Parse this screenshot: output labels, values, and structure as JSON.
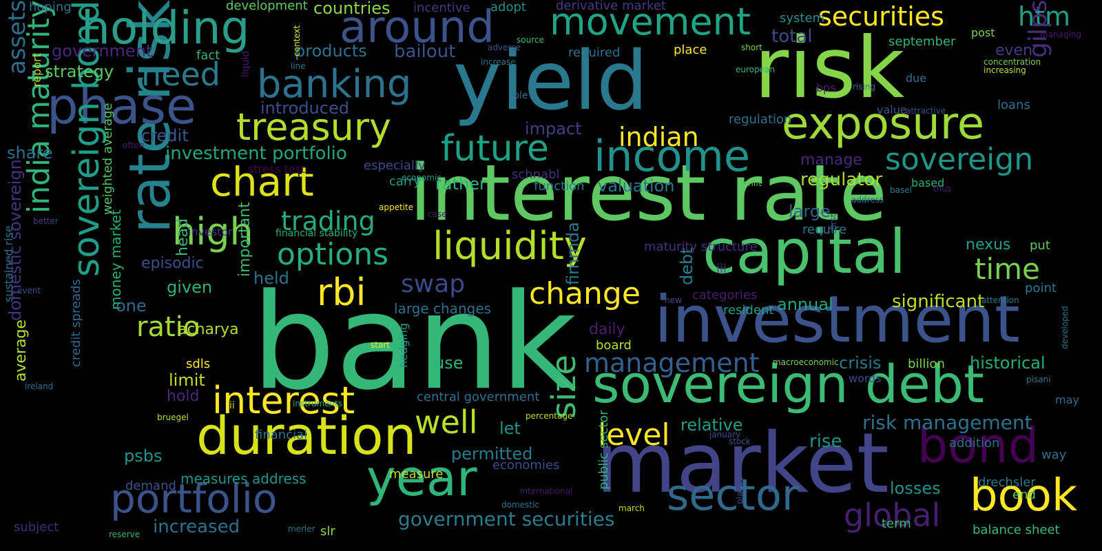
{
  "words": [
    {
      "text": "bank",
      "color": "#35b779"
    },
    {
      "text": "interest rate",
      "color": "#5ec962"
    },
    {
      "text": "risk",
      "color": "#86d549"
    },
    {
      "text": "yield",
      "color": "#2a788e"
    },
    {
      "text": "market",
      "color": "#414487"
    },
    {
      "text": "investment",
      "color": "#3b528b"
    },
    {
      "text": "rate risk",
      "color": "#25838e"
    },
    {
      "text": "capital",
      "color": "#4ac16d"
    },
    {
      "text": "sovereign debt",
      "color": "#3bbb75"
    },
    {
      "text": "duration",
      "color": "#d8e219"
    },
    {
      "text": "holding",
      "color": "#2a9d8b"
    },
    {
      "text": "around",
      "color": "#3b528b"
    },
    {
      "text": "phase",
      "color": "#3b528b"
    },
    {
      "text": "exposure",
      "color": "#a0da39"
    },
    {
      "text": "income",
      "color": "#21918c"
    },
    {
      "text": "year",
      "color": "#2fb47c"
    },
    {
      "text": "portfolio",
      "color": "#3b528b"
    },
    {
      "text": "book",
      "color": "#fde725"
    },
    {
      "text": "bond",
      "color": "#440154"
    },
    {
      "text": "sector",
      "color": "#31688e"
    },
    {
      "text": "chart",
      "color": "#dde318"
    },
    {
      "text": "liquidity",
      "color": "#b5de2b"
    },
    {
      "text": "banking",
      "color": "#2c728e"
    },
    {
      "text": "treasury",
      "color": "#b5de2b"
    },
    {
      "text": "sovereign bond",
      "color": "#1f9e89"
    },
    {
      "text": "movement",
      "color": "#20a486"
    },
    {
      "text": "securities",
      "color": "#fde725"
    },
    {
      "text": "htm",
      "color": "#1fa187"
    },
    {
      "text": "future",
      "color": "#1fa187"
    },
    {
      "text": "interest",
      "color": "#fde725"
    },
    {
      "text": "rbi",
      "color": "#fde725"
    },
    {
      "text": "sovereign",
      "color": "#1f968b"
    },
    {
      "text": "high",
      "color": "#7ad151"
    },
    {
      "text": "india maturity",
      "color": "#31b57b"
    },
    {
      "text": "time",
      "color": "#7ad151"
    },
    {
      "text": "size",
      "color": "#3fbc73"
    },
    {
      "text": "global",
      "color": "#481f70"
    },
    {
      "text": "change",
      "color": "#fde725"
    },
    {
      "text": "need",
      "color": "#287c8e"
    },
    {
      "text": "ratio",
      "color": "#a5db36"
    },
    {
      "text": "options",
      "color": "#26ad81"
    },
    {
      "text": "management",
      "color": "#355f8d"
    },
    {
      "text": "well",
      "color": "#bddf26"
    },
    {
      "text": "level",
      "color": "#fde725"
    },
    {
      "text": "gilps",
      "color": "#472d7b"
    },
    {
      "text": "assets",
      "color": "#2e6e8e"
    },
    {
      "text": "swap",
      "color": "#3e4989"
    },
    {
      "text": "indian",
      "color": "#fde725"
    },
    {
      "text": "trading",
      "color": "#25ab82"
    },
    {
      "text": "significant",
      "color": "#bddf26"
    },
    {
      "text": "government securities",
      "color": "#287d8e"
    },
    {
      "text": "investment portfolio",
      "color": "#21a685"
    },
    {
      "text": "risk management",
      "color": "#2c728e"
    },
    {
      "text": "regulator",
      "color": "#addc30"
    },
    {
      "text": "total",
      "color": "#3e4c8a"
    },
    {
      "text": "nexus",
      "color": "#1fa187"
    },
    {
      "text": "bailout",
      "color": "#3b528b"
    },
    {
      "text": "increased",
      "color": "#2d708e"
    },
    {
      "text": "crisis",
      "color": "#2a788e"
    },
    {
      "text": "historical",
      "color": "#26ad81"
    },
    {
      "text": "government",
      "color": "#482878"
    },
    {
      "text": "products",
      "color": "#2c728e"
    },
    {
      "text": "strategy",
      "color": "#5ec962"
    },
    {
      "text": "countries",
      "color": "#8fd744"
    },
    {
      "text": "credit",
      "color": "#38588c"
    },
    {
      "text": "share",
      "color": "#2d708e"
    },
    {
      "text": "introduced",
      "color": "#3e4c8a"
    },
    {
      "text": "impact",
      "color": "#433e85"
    },
    {
      "text": "valuation",
      "color": "#2a788e"
    },
    {
      "text": "rather",
      "color": "#2fb47c"
    },
    {
      "text": "manage",
      "color": "#482878"
    },
    {
      "text": "large",
      "color": "#355f8d"
    },
    {
      "text": "require",
      "color": "#2a788e"
    },
    {
      "text": "episodic",
      "color": "#3e4c8a"
    },
    {
      "text": "given",
      "color": "#2fb47c"
    },
    {
      "text": "held",
      "color": "#2c728e"
    },
    {
      "text": "one",
      "color": "#31688e"
    },
    {
      "text": "daily",
      "color": "#481f70"
    },
    {
      "text": "large changes",
      "color": "#2d708e"
    },
    {
      "text": "relative",
      "color": "#1f9e89"
    },
    {
      "text": "annual",
      "color": "#20a486"
    },
    {
      "text": "debt",
      "color": "#287d8e"
    },
    {
      "text": "fimmda",
      "color": "#2a788e"
    },
    {
      "text": "limit",
      "color": "#c2df23"
    },
    {
      "text": "hold",
      "color": "#482878"
    },
    {
      "text": "use",
      "color": "#2fb47c"
    },
    {
      "text": "let",
      "color": "#21918c"
    },
    {
      "text": "permitted",
      "color": "#287c8e"
    },
    {
      "text": "board",
      "color": "#bddf26"
    },
    {
      "text": "rise",
      "color": "#1f968b"
    },
    {
      "text": "even",
      "color": "#443a83"
    },
    {
      "text": "loans",
      "color": "#2c728e"
    },
    {
      "text": "acharya",
      "color": "#b5de2b"
    },
    {
      "text": "psbs",
      "color": "#1f968b"
    },
    {
      "text": "measures address",
      "color": "#1f968b"
    },
    {
      "text": "central government",
      "color": "#2c728e"
    },
    {
      "text": "money market",
      "color": "#26ad81"
    },
    {
      "text": "important",
      "color": "#3bbb75"
    },
    {
      "text": "head",
      "color": "#35b779"
    },
    {
      "text": "investor",
      "color": "#46327e"
    },
    {
      "text": "sdls",
      "color": "#fde725"
    },
    {
      "text": "average",
      "color": "#b5de2b"
    },
    {
      "text": "domestic sovereign",
      "color": "#46327e"
    },
    {
      "text": "weighted average",
      "color": "#52c569"
    },
    {
      "text": "economies",
      "color": "#3e4c8a"
    },
    {
      "text": "demand",
      "color": "#3b528b"
    },
    {
      "text": "drechsler",
      "color": "#2a788e"
    },
    {
      "text": "losses",
      "color": "#21918c"
    },
    {
      "text": "addition",
      "color": "#2d708e"
    },
    {
      "text": "way",
      "color": "#2c728e"
    },
    {
      "text": "may",
      "color": "#31688e"
    },
    {
      "text": "point",
      "color": "#2a788e"
    },
    {
      "text": "put",
      "color": "#5ec962"
    },
    {
      "text": "end",
      "color": "#5ec962"
    },
    {
      "text": "balance sheet",
      "color": "#38b977"
    },
    {
      "text": "term",
      "color": "#38b977"
    },
    {
      "text": "billion",
      "color": "#7ad151"
    },
    {
      "text": "words",
      "color": "#3e4989"
    },
    {
      "text": "categories",
      "color": "#481f70"
    },
    {
      "text": "resident",
      "color": "#1f9e89"
    },
    {
      "text": "iii",
      "color": "#3e4c8a"
    },
    {
      "text": "function",
      "color": "#2a788e"
    },
    {
      "text": "carry",
      "color": "#1f9e89"
    },
    {
      "text": "especially",
      "color": "#3e4989"
    },
    {
      "text": "schnabl",
      "color": "#472d7b"
    },
    {
      "text": "hedging",
      "color": "#1f9e89"
    },
    {
      "text": "measure",
      "color": "#bddf26"
    },
    {
      "text": "subject",
      "color": "#482878"
    },
    {
      "text": "slr",
      "color": "#8fd744"
    },
    {
      "text": "financial",
      "color": "#2c728e"
    },
    {
      "text": "public sector",
      "color": "#2fb47c"
    },
    {
      "text": "credit spreads",
      "color": "#31688e"
    },
    {
      "text": "sustained rise",
      "color": "#2d708e"
    },
    {
      "text": "hoping",
      "color": "#2d708e"
    },
    {
      "text": "development",
      "color": "#5ec962"
    },
    {
      "text": "incentive",
      "color": "#443a83"
    },
    {
      "text": "adopt",
      "color": "#21918c"
    },
    {
      "text": "derivative market",
      "color": "#443a83"
    },
    {
      "text": "system",
      "color": "#21918c"
    },
    {
      "text": "september",
      "color": "#2fb47c"
    },
    {
      "text": "post",
      "color": "#7ad151"
    },
    {
      "text": "managing",
      "color": "#48186a"
    },
    {
      "text": "concentration",
      "color": "#7ad151"
    },
    {
      "text": "increasing",
      "color": "#bddf26"
    },
    {
      "text": "fact",
      "color": "#2fb47c"
    },
    {
      "text": "required",
      "color": "#2c728e"
    },
    {
      "text": "place",
      "color": "#fde725"
    },
    {
      "text": "european",
      "color": "#2fb47c"
    },
    {
      "text": "short",
      "color": "#7ad151"
    },
    {
      "text": "bps",
      "color": "#481f70"
    },
    {
      "text": "rising",
      "color": "#2d708e"
    },
    {
      "text": "due",
      "color": "#2d708e"
    },
    {
      "text": "value",
      "color": "#3b528b"
    },
    {
      "text": "attractive",
      "color": "#3e4c8a"
    },
    {
      "text": "regulation",
      "color": "#2c728e"
    },
    {
      "text": "based",
      "color": "#26ad81"
    },
    {
      "text": "basel",
      "color": "#2a788e"
    },
    {
      "text": "thus",
      "color": "#481f70"
    },
    {
      "text": "shift",
      "color": "#5ec962"
    },
    {
      "text": "address",
      "color": "#2c728e"
    },
    {
      "text": "first",
      "color": "#3e4c8a"
    },
    {
      "text": "maturity structure",
      "color": "#472d7b"
    },
    {
      "text": "financial stability",
      "color": "#26ad81"
    },
    {
      "text": "economic",
      "color": "#1f9e89"
    },
    {
      "text": "stress test",
      "color": "#440154"
    },
    {
      "text": "appetite",
      "color": "#fde725"
    },
    {
      "text": "case",
      "color": "#48186a"
    },
    {
      "text": "role",
      "color": "#2d708e"
    },
    {
      "text": "context",
      "color": "#dde318"
    },
    {
      "text": "source",
      "color": "#3bbb75"
    },
    {
      "text": "adverse",
      "color": "#3b528b"
    },
    {
      "text": "increase",
      "color": "#2c728e"
    },
    {
      "text": "line",
      "color": "#2a788e"
    },
    {
      "text": "liquid",
      "color": "#48186a"
    },
    {
      "text": "often",
      "color": "#48186a"
    },
    {
      "text": "report",
      "color": "#bddf26"
    },
    {
      "text": "better",
      "color": "#433e85"
    },
    {
      "text": "event",
      "color": "#3e4c8a"
    },
    {
      "text": "ireland",
      "color": "#2c728e"
    },
    {
      "text": "start",
      "color": "#fde725"
    },
    {
      "text": "ii",
      "color": "#bddf26"
    },
    {
      "text": "instruments",
      "color": "#25ab82"
    },
    {
      "text": "bruegel",
      "color": "#bddf26"
    },
    {
      "text": "percentage",
      "color": "#bddf26"
    },
    {
      "text": "reserve",
      "color": "#2fb47c"
    },
    {
      "text": "merler",
      "color": "#2c728e"
    },
    {
      "text": "international",
      "color": "#48186a"
    },
    {
      "text": "domestic",
      "color": "#2c728e"
    },
    {
      "text": "march",
      "color": "#bddf26"
    },
    {
      "text": "played",
      "color": "#3e4c8a"
    },
    {
      "text": "january",
      "color": "#3e4989"
    },
    {
      "text": "stock",
      "color": "#3b528b"
    },
    {
      "text": "pisani",
      "color": "#2a788e"
    },
    {
      "text": "macroeconomic",
      "color": "#7ad151"
    },
    {
      "text": "new",
      "color": "#3e4c8a"
    },
    {
      "text": "attention",
      "color": "#2a788e"
    },
    {
      "text": "developed",
      "color": "#2c728e"
    }
  ]
}
